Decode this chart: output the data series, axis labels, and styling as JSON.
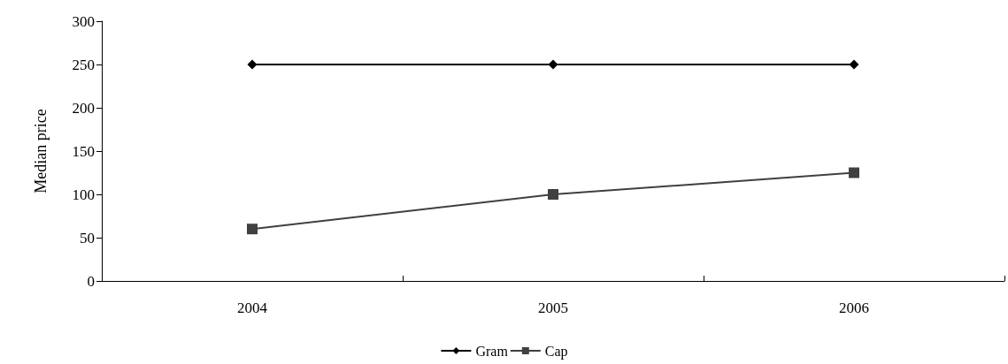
{
  "chart_data": {
    "type": "line",
    "ylabel": "Median price",
    "categories": [
      "2004",
      "2005",
      "2006"
    ],
    "series": [
      {
        "name": "Gram",
        "color": "#000000",
        "marker": "diamond",
        "values": [
          250,
          250,
          250
        ]
      },
      {
        "name": "Cap",
        "color": "#404040",
        "marker": "square",
        "values": [
          60,
          100,
          125
        ]
      }
    ],
    "ylim": [
      0,
      300
    ],
    "yticks": [
      0,
      50,
      100,
      150,
      200,
      250,
      300
    ],
    "grid": false,
    "legend": "bottom",
    "line_style": "solid"
  }
}
